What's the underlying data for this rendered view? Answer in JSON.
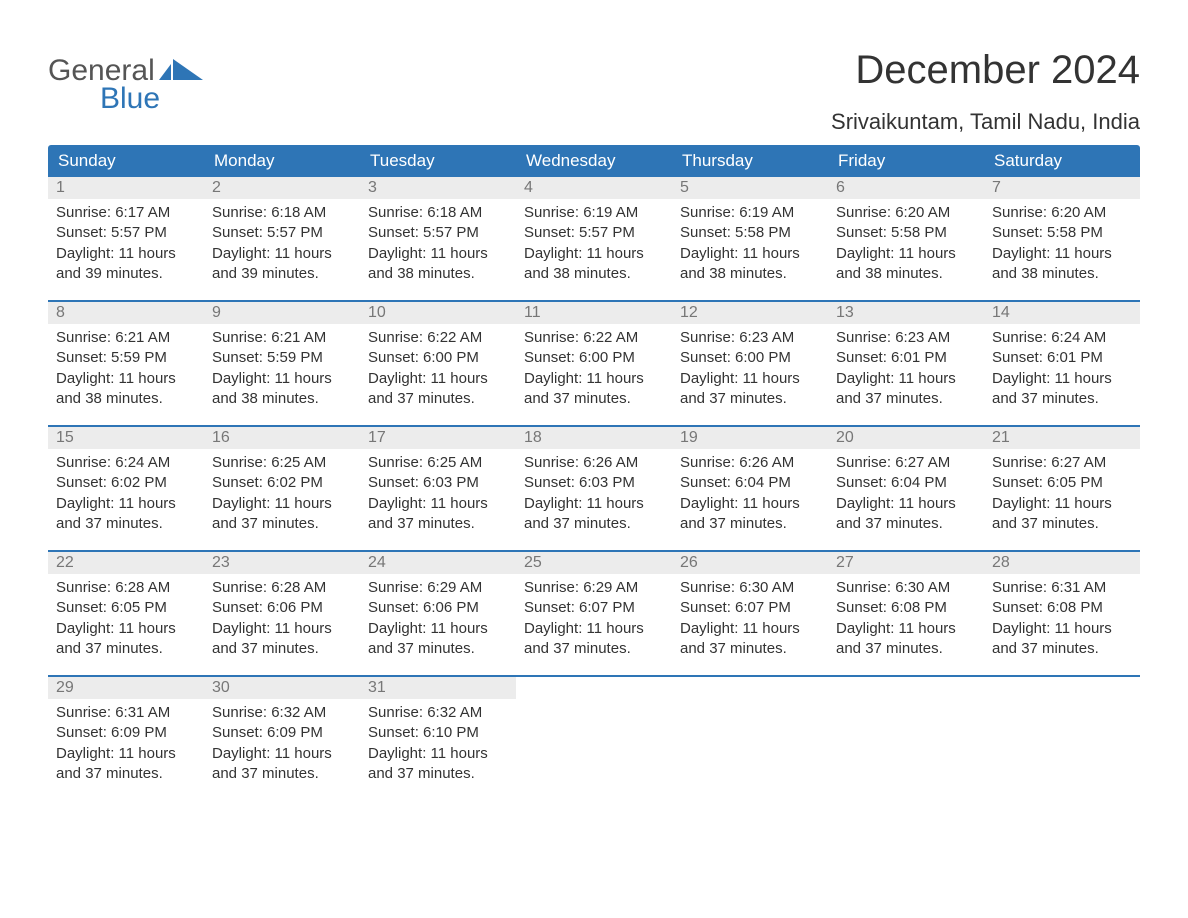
{
  "logo": {
    "text_general": "General",
    "text_blue": "Blue",
    "accent_color": "#2e75b6",
    "general_color": "#555555"
  },
  "title": "December 2024",
  "location": "Srivaikuntam, Tamil Nadu, India",
  "colors": {
    "header_bg": "#2e75b6",
    "header_text": "#ffffff",
    "daynum_bg": "#ececec",
    "daynum_text": "#777777",
    "body_text": "#333333",
    "week_border": "#2e75b6",
    "background": "#ffffff"
  },
  "typography": {
    "title_fontsize": 40,
    "location_fontsize": 22,
    "dayheader_fontsize": 17,
    "daynum_fontsize": 16,
    "content_fontsize": 15
  },
  "day_headers": [
    "Sunday",
    "Monday",
    "Tuesday",
    "Wednesday",
    "Thursday",
    "Friday",
    "Saturday"
  ],
  "weeks": [
    [
      {
        "num": "1",
        "sunrise": "Sunrise: 6:17 AM",
        "sunset": "Sunset: 5:57 PM",
        "daylight1": "Daylight: 11 hours",
        "daylight2": "and 39 minutes."
      },
      {
        "num": "2",
        "sunrise": "Sunrise: 6:18 AM",
        "sunset": "Sunset: 5:57 PM",
        "daylight1": "Daylight: 11 hours",
        "daylight2": "and 39 minutes."
      },
      {
        "num": "3",
        "sunrise": "Sunrise: 6:18 AM",
        "sunset": "Sunset: 5:57 PM",
        "daylight1": "Daylight: 11 hours",
        "daylight2": "and 38 minutes."
      },
      {
        "num": "4",
        "sunrise": "Sunrise: 6:19 AM",
        "sunset": "Sunset: 5:57 PM",
        "daylight1": "Daylight: 11 hours",
        "daylight2": "and 38 minutes."
      },
      {
        "num": "5",
        "sunrise": "Sunrise: 6:19 AM",
        "sunset": "Sunset: 5:58 PM",
        "daylight1": "Daylight: 11 hours",
        "daylight2": "and 38 minutes."
      },
      {
        "num": "6",
        "sunrise": "Sunrise: 6:20 AM",
        "sunset": "Sunset: 5:58 PM",
        "daylight1": "Daylight: 11 hours",
        "daylight2": "and 38 minutes."
      },
      {
        "num": "7",
        "sunrise": "Sunrise: 6:20 AM",
        "sunset": "Sunset: 5:58 PM",
        "daylight1": "Daylight: 11 hours",
        "daylight2": "and 38 minutes."
      }
    ],
    [
      {
        "num": "8",
        "sunrise": "Sunrise: 6:21 AM",
        "sunset": "Sunset: 5:59 PM",
        "daylight1": "Daylight: 11 hours",
        "daylight2": "and 38 minutes."
      },
      {
        "num": "9",
        "sunrise": "Sunrise: 6:21 AM",
        "sunset": "Sunset: 5:59 PM",
        "daylight1": "Daylight: 11 hours",
        "daylight2": "and 38 minutes."
      },
      {
        "num": "10",
        "sunrise": "Sunrise: 6:22 AM",
        "sunset": "Sunset: 6:00 PM",
        "daylight1": "Daylight: 11 hours",
        "daylight2": "and 37 minutes."
      },
      {
        "num": "11",
        "sunrise": "Sunrise: 6:22 AM",
        "sunset": "Sunset: 6:00 PM",
        "daylight1": "Daylight: 11 hours",
        "daylight2": "and 37 minutes."
      },
      {
        "num": "12",
        "sunrise": "Sunrise: 6:23 AM",
        "sunset": "Sunset: 6:00 PM",
        "daylight1": "Daylight: 11 hours",
        "daylight2": "and 37 minutes."
      },
      {
        "num": "13",
        "sunrise": "Sunrise: 6:23 AM",
        "sunset": "Sunset: 6:01 PM",
        "daylight1": "Daylight: 11 hours",
        "daylight2": "and 37 minutes."
      },
      {
        "num": "14",
        "sunrise": "Sunrise: 6:24 AM",
        "sunset": "Sunset: 6:01 PM",
        "daylight1": "Daylight: 11 hours",
        "daylight2": "and 37 minutes."
      }
    ],
    [
      {
        "num": "15",
        "sunrise": "Sunrise: 6:24 AM",
        "sunset": "Sunset: 6:02 PM",
        "daylight1": "Daylight: 11 hours",
        "daylight2": "and 37 minutes."
      },
      {
        "num": "16",
        "sunrise": "Sunrise: 6:25 AM",
        "sunset": "Sunset: 6:02 PM",
        "daylight1": "Daylight: 11 hours",
        "daylight2": "and 37 minutes."
      },
      {
        "num": "17",
        "sunrise": "Sunrise: 6:25 AM",
        "sunset": "Sunset: 6:03 PM",
        "daylight1": "Daylight: 11 hours",
        "daylight2": "and 37 minutes."
      },
      {
        "num": "18",
        "sunrise": "Sunrise: 6:26 AM",
        "sunset": "Sunset: 6:03 PM",
        "daylight1": "Daylight: 11 hours",
        "daylight2": "and 37 minutes."
      },
      {
        "num": "19",
        "sunrise": "Sunrise: 6:26 AM",
        "sunset": "Sunset: 6:04 PM",
        "daylight1": "Daylight: 11 hours",
        "daylight2": "and 37 minutes."
      },
      {
        "num": "20",
        "sunrise": "Sunrise: 6:27 AM",
        "sunset": "Sunset: 6:04 PM",
        "daylight1": "Daylight: 11 hours",
        "daylight2": "and 37 minutes."
      },
      {
        "num": "21",
        "sunrise": "Sunrise: 6:27 AM",
        "sunset": "Sunset: 6:05 PM",
        "daylight1": "Daylight: 11 hours",
        "daylight2": "and 37 minutes."
      }
    ],
    [
      {
        "num": "22",
        "sunrise": "Sunrise: 6:28 AM",
        "sunset": "Sunset: 6:05 PM",
        "daylight1": "Daylight: 11 hours",
        "daylight2": "and 37 minutes."
      },
      {
        "num": "23",
        "sunrise": "Sunrise: 6:28 AM",
        "sunset": "Sunset: 6:06 PM",
        "daylight1": "Daylight: 11 hours",
        "daylight2": "and 37 minutes."
      },
      {
        "num": "24",
        "sunrise": "Sunrise: 6:29 AM",
        "sunset": "Sunset: 6:06 PM",
        "daylight1": "Daylight: 11 hours",
        "daylight2": "and 37 minutes."
      },
      {
        "num": "25",
        "sunrise": "Sunrise: 6:29 AM",
        "sunset": "Sunset: 6:07 PM",
        "daylight1": "Daylight: 11 hours",
        "daylight2": "and 37 minutes."
      },
      {
        "num": "26",
        "sunrise": "Sunrise: 6:30 AM",
        "sunset": "Sunset: 6:07 PM",
        "daylight1": "Daylight: 11 hours",
        "daylight2": "and 37 minutes."
      },
      {
        "num": "27",
        "sunrise": "Sunrise: 6:30 AM",
        "sunset": "Sunset: 6:08 PM",
        "daylight1": "Daylight: 11 hours",
        "daylight2": "and 37 minutes."
      },
      {
        "num": "28",
        "sunrise": "Sunrise: 6:31 AM",
        "sunset": "Sunset: 6:08 PM",
        "daylight1": "Daylight: 11 hours",
        "daylight2": "and 37 minutes."
      }
    ],
    [
      {
        "num": "29",
        "sunrise": "Sunrise: 6:31 AM",
        "sunset": "Sunset: 6:09 PM",
        "daylight1": "Daylight: 11 hours",
        "daylight2": "and 37 minutes."
      },
      {
        "num": "30",
        "sunrise": "Sunrise: 6:32 AM",
        "sunset": "Sunset: 6:09 PM",
        "daylight1": "Daylight: 11 hours",
        "daylight2": "and 37 minutes."
      },
      {
        "num": "31",
        "sunrise": "Sunrise: 6:32 AM",
        "sunset": "Sunset: 6:10 PM",
        "daylight1": "Daylight: 11 hours",
        "daylight2": "and 37 minutes."
      },
      {
        "empty": true
      },
      {
        "empty": true
      },
      {
        "empty": true
      },
      {
        "empty": true
      }
    ]
  ]
}
